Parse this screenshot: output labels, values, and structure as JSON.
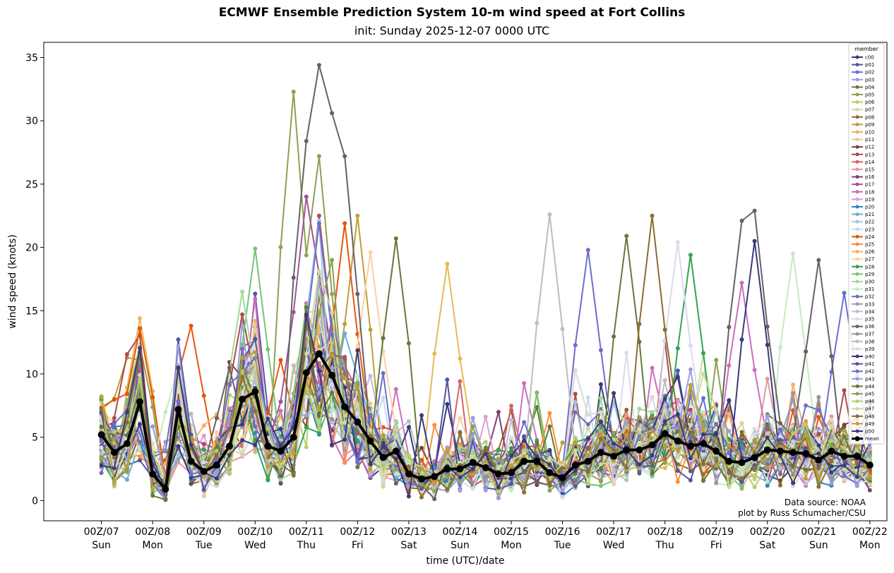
{
  "chart_data": {
    "type": "line",
    "title": "ECMWF Ensemble Prediction System 10-m wind speed at Fort Collins",
    "subtitle": "init: Sunday 2025-12-07 0000 UTC",
    "xlabel": "time (UTC)/date",
    "ylabel": "wind speed (knots)",
    "ylim": [
      -1.6,
      36.2
    ],
    "xlim_hours": [
      -27,
      368
    ],
    "step_hours": 6,
    "yticks": [
      "0",
      "5",
      "10",
      "15",
      "20",
      "25",
      "30",
      "35"
    ],
    "xticks": [
      {
        "line1": "00Z/07",
        "line2": "Sun"
      },
      {
        "line1": "00Z/08",
        "line2": "Mon"
      },
      {
        "line1": "00Z/09",
        "line2": "Tue"
      },
      {
        "line1": "00Z/10",
        "line2": "Wed"
      },
      {
        "line1": "00Z/11",
        "line2": "Thu"
      },
      {
        "line1": "00Z/12",
        "line2": "Fri"
      },
      {
        "line1": "00Z/13",
        "line2": "Sat"
      },
      {
        "line1": "00Z/14",
        "line2": "Sun"
      },
      {
        "line1": "00Z/15",
        "line2": "Mon"
      },
      {
        "line1": "00Z/16",
        "line2": "Tue"
      },
      {
        "line1": "00Z/17",
        "line2": "Wed"
      },
      {
        "line1": "00Z/18",
        "line2": "Thu"
      },
      {
        "line1": "00Z/19",
        "line2": "Fri"
      },
      {
        "line1": "00Z/20",
        "line2": "Sat"
      },
      {
        "line1": "00Z/21",
        "line2": "Sun"
      },
      {
        "line1": "00Z/22",
        "line2": "Mon"
      }
    ],
    "legend": {
      "title": "member",
      "placement": "upper-right",
      "members": [
        "c00",
        "p01",
        "p02",
        "p03",
        "p04",
        "p05",
        "p06",
        "p07",
        "p08",
        "p09",
        "p10",
        "p11",
        "p12",
        "p13",
        "p14",
        "p15",
        "p16",
        "p17",
        "p18",
        "p19",
        "p20",
        "p21",
        "p22",
        "p23",
        "p24",
        "p25",
        "p26",
        "p27",
        "p28",
        "p29",
        "p30",
        "p31",
        "p32",
        "p33",
        "p34",
        "p35",
        "p36",
        "p37",
        "p38",
        "p39",
        "p40",
        "p41",
        "p42",
        "p43",
        "p44",
        "p45",
        "p46",
        "p47",
        "p48",
        "p49",
        "p50"
      ],
      "colors": [
        "#393b79",
        "#5254a3",
        "#6b6ecf",
        "#9c9ede",
        "#637939",
        "#8ca252",
        "#b5cf6b",
        "#cedb9c",
        "#8c6d31",
        "#bd9e39",
        "#e7ba52",
        "#e7cb94",
        "#843c39",
        "#ad494a",
        "#d6616b",
        "#e7969c",
        "#7b4173",
        "#a55194",
        "#ce6dbd",
        "#de9ed6",
        "#3182bd",
        "#6baed6",
        "#9ecae1",
        "#c6dbef",
        "#e6550d",
        "#fd8d3c",
        "#fdae6b",
        "#fdd0a2",
        "#31a354",
        "#74c476",
        "#a1d99b",
        "#c7e9c0",
        "#756bb1",
        "#9e9ac8",
        "#bcbddc",
        "#dadaeb",
        "#636363",
        "#969696",
        "#bdbdbd",
        "#d9d9d9",
        "#393b79",
        "#5254a3",
        "#6b6ecf",
        "#9c9ede",
        "#637939",
        "#8ca252",
        "#b5cf6b",
        "#cedb9c",
        "#8c6d31",
        "#bd9e39"
      ],
      "mean_label": "mean",
      "mean_color": "#000000"
    },
    "mean": [
      5.2,
      3.8,
      4.5,
      7.8,
      2.1,
      0.9,
      7.2,
      3.1,
      2.3,
      2.8,
      4.3,
      8.0,
      8.6,
      4.3,
      3.9,
      5.0,
      10.1,
      11.6,
      9.9,
      7.4,
      6.2,
      4.7,
      3.4,
      3.9,
      2.1,
      1.7,
      1.9,
      2.5,
      2.5,
      3.0,
      2.6,
      2.1,
      2.2,
      3.1,
      3.1,
      2.2,
      1.8,
      2.8,
      3.1,
      3.8,
      3.5,
      4.0,
      4.0,
      4.4,
      5.3,
      4.7,
      4.3,
      4.5,
      3.9,
      3.1,
      3.0,
      3.4,
      4.0,
      3.9,
      3.8,
      3.7,
      3.2,
      3.9,
      3.5,
      3.5,
      2.8
    ],
    "member_peaks": [
      {
        "member": "p24",
        "hour": 18,
        "value": 13.6
      },
      {
        "member": "p10",
        "hour": 18,
        "value": 14.4
      },
      {
        "member": "p05",
        "hour": 18,
        "value": 12.3
      },
      {
        "member": "p24",
        "hour": 42,
        "value": 13.8
      },
      {
        "member": "p36",
        "hour": 60,
        "value": 10.5
      },
      {
        "member": "p13",
        "hour": 66,
        "value": 14.7
      },
      {
        "member": "p29",
        "hour": 72,
        "value": 19.9
      },
      {
        "member": "p30",
        "hour": 66,
        "value": 16.5
      },
      {
        "member": "p24",
        "hour": 84,
        "value": 11.1
      },
      {
        "member": "p36",
        "hour": 96,
        "value": 28.4
      },
      {
        "member": "p05",
        "hour": 90,
        "value": 32.3
      },
      {
        "member": "p36",
        "hour": 102,
        "value": 34.4
      },
      {
        "member": "p36",
        "hour": 108,
        "value": 30.6
      },
      {
        "member": "p36",
        "hour": 114,
        "value": 27.2
      },
      {
        "member": "p05",
        "hour": 102,
        "value": 27.2
      },
      {
        "member": "p17",
        "hour": 96,
        "value": 24.0
      },
      {
        "member": "p13",
        "hour": 102,
        "value": 22.5
      },
      {
        "member": "p42",
        "hour": 102,
        "value": 21.9
      },
      {
        "member": "p24",
        "hour": 114,
        "value": 21.9
      },
      {
        "member": "p09",
        "hour": 120,
        "value": 22.5
      },
      {
        "member": "p27",
        "hour": 126,
        "value": 19.6
      },
      {
        "member": "p44",
        "hour": 138,
        "value": 20.7
      },
      {
        "member": "p10",
        "hour": 162,
        "value": 18.7
      },
      {
        "member": "p38",
        "hour": 210,
        "value": 22.6
      },
      {
        "member": "p02",
        "hour": 228,
        "value": 19.8
      },
      {
        "member": "p44",
        "hour": 246,
        "value": 20.9
      },
      {
        "member": "p48",
        "hour": 258,
        "value": 22.5
      },
      {
        "member": "p35",
        "hour": 270,
        "value": 20.4
      },
      {
        "member": "p28",
        "hour": 276,
        "value": 19.4
      },
      {
        "member": "p36",
        "hour": 300,
        "value": 22.1
      },
      {
        "member": "p36",
        "hour": 306,
        "value": 22.9
      },
      {
        "member": "p40",
        "hour": 306,
        "value": 20.5
      },
      {
        "member": "p31",
        "hour": 324,
        "value": 19.5
      },
      {
        "member": "p36",
        "hour": 336,
        "value": 19.0
      },
      {
        "member": "p18",
        "hour": 300,
        "value": 17.2
      },
      {
        "member": "p02",
        "hour": 348,
        "value": 16.4
      }
    ]
  },
  "annotation": {
    "line1": "Data source: NOAA",
    "line2": "plot by Russ Schumacher/CSU"
  }
}
